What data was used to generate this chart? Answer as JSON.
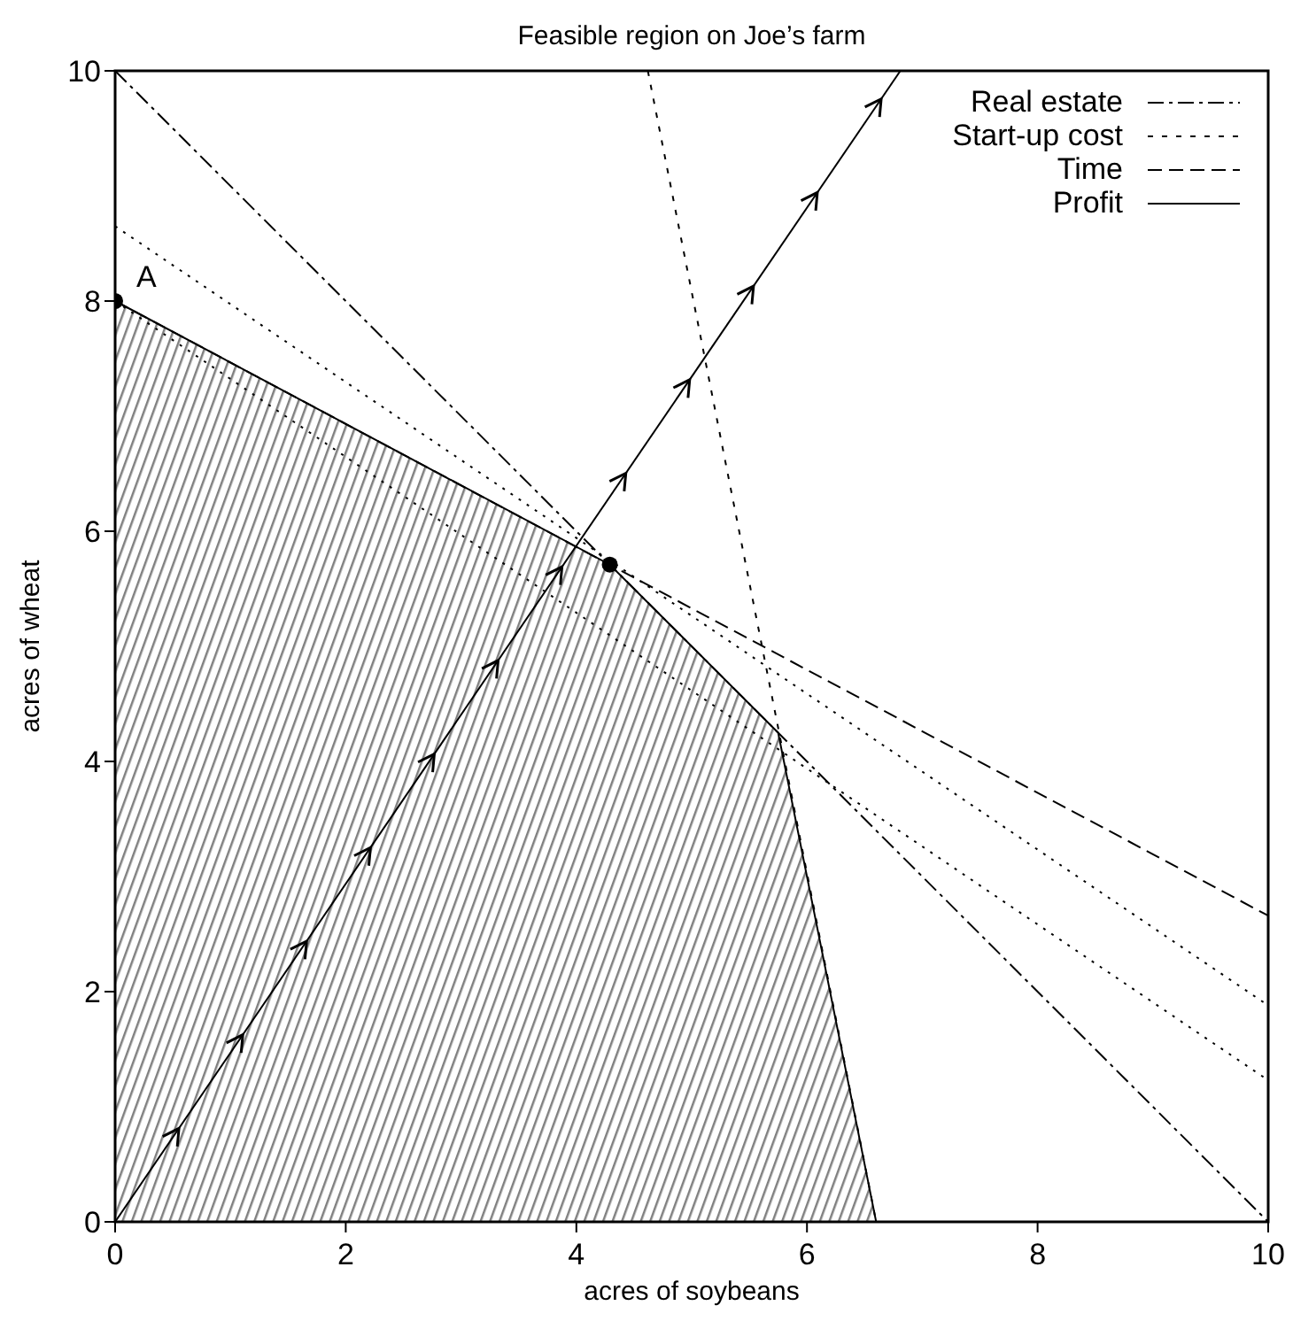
{
  "chart_data": {
    "type": "line",
    "title": "Feasible region on Joe’s farm",
    "xlabel": "acres of soybeans",
    "ylabel": "acres of wheat",
    "xlim": [
      0,
      10
    ],
    "ylim": [
      0,
      10
    ],
    "xticks": [
      0,
      2,
      4,
      6,
      8,
      10
    ],
    "yticks": [
      0,
      2,
      4,
      6,
      8,
      10
    ],
    "legend": "top right",
    "annotations": [
      {
        "text": "A",
        "x": 0,
        "y": 8
      }
    ],
    "series": [
      {
        "type": "area",
        "color": "#808080",
        "x": [
          0,
          4.29,
          5.75,
          6.6
        ],
        "values": [
          8,
          5.71,
          4.25,
          0
        ]
      },
      {
        "name": "Real estate",
        "color": "#000000",
        "line_style": "dashdot",
        "x": [
          0,
          10
        ],
        "values": [
          10,
          0
        ]
      },
      {
        "name": "Start-up cost",
        "color": "#000000",
        "line_style": "dashed",
        "x": [
          4.62,
          6.6
        ],
        "values": [
          10,
          0
        ]
      },
      {
        "name": "Time",
        "color": "#000000",
        "line_style": "longdash",
        "x": [
          0,
          10
        ],
        "values": [
          8,
          2.66
        ]
      },
      {
        "name": "Profit",
        "color": "#000000",
        "line_style": "solid",
        "x": [
          0,
          6.81
        ],
        "values": [
          0,
          10
        ]
      },
      {
        "color": "#000000",
        "line_style": "dotted",
        "x": [
          0,
          10
        ],
        "values": [
          8.65,
          1.88
        ]
      },
      {
        "color": "#000000",
        "line_style": "dotted",
        "x": [
          0,
          10
        ],
        "values": [
          8,
          1.23
        ]
      },
      {
        "type": "scatter",
        "color": "#000000",
        "marker": "circle",
        "x": [
          0,
          4.29
        ],
        "values": [
          8,
          5.71
        ]
      }
    ]
  }
}
